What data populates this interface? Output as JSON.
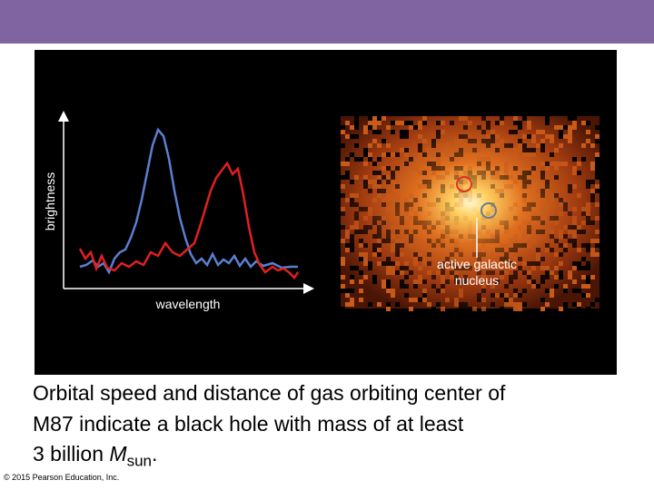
{
  "figure": {
    "y_axis_label": "brightness",
    "x_axis_label": "wavelength",
    "annotation": [
      "active galactic",
      "nucleus"
    ]
  },
  "caption": {
    "lines": [
      "Orbital speed and distance of gas orbiting center of",
      "M87 indicate a black hole with mass of at least"
    ],
    "last_line": {
      "text": "3 billion ",
      "symbol": "M",
      "subscript": "sun",
      "end": "."
    }
  },
  "footer": {
    "copyright": "© 2015 Pearson Education, Inc."
  }
}
